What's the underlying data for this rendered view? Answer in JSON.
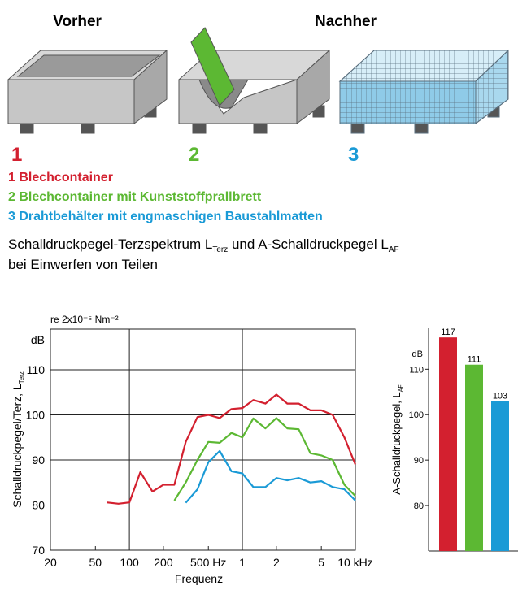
{
  "header": {
    "before": "Vorher",
    "after": "Nachher"
  },
  "markers": [
    "1",
    "2",
    "3"
  ],
  "caption": [
    "Schalldruckpegel-Terzspektrum L",
    "Terz",
    " und A-Schalldruckpegel L",
    "AF",
    "bei Einwerfen von Teilen"
  ],
  "chart_data": [
    {
      "type": "line",
      "unit_note": "re 2x10⁻⁵ Nm⁻²",
      "y_unit": "dB",
      "y_label": [
        "Schalldruckpegel/Terz, L",
        "Terz"
      ],
      "x_label": "Frequenz",
      "log_x": true,
      "grid": true,
      "x": [
        63,
        80,
        100,
        125,
        160,
        200,
        250,
        315,
        400,
        500,
        630,
        800,
        1000,
        1250,
        1600,
        2000,
        2500,
        3150,
        4000,
        5000,
        6300,
        8000,
        10000
      ],
      "series": [
        {
          "name": "1 Blechcontainer",
          "color": "#d3202f",
          "values": [
            80.6,
            80.3,
            80.6,
            87.3,
            83,
            84.5,
            84.5,
            94,
            99.5,
            100,
            99.3,
            101.3,
            101.5,
            103.3,
            102.5,
            104.5,
            102.5,
            102.5,
            101,
            101,
            100,
            95,
            89
          ]
        },
        {
          "name": "2 Blechcontainer mit Kunststoffprallbrett",
          "color": "#5cb833",
          "values": [
            null,
            null,
            null,
            null,
            null,
            null,
            81,
            85,
            90,
            94,
            93.8,
            96,
            95,
            99.2,
            97,
            99.3,
            97,
            96.8,
            91.5,
            91,
            90,
            84.5,
            82
          ]
        },
        {
          "name": "3 Drahtbehälter mit engmaschigen Baustahlmatten",
          "color": "#1a9ad6",
          "values": [
            null,
            null,
            null,
            null,
            null,
            null,
            null,
            80.5,
            83.5,
            89.5,
            92,
            87.5,
            87,
            84,
            84,
            86,
            85.5,
            86,
            85,
            85.3,
            84,
            83.5,
            81
          ]
        }
      ],
      "xlim": [
        20,
        10000
      ],
      "xticks": [
        20,
        50,
        100,
        200,
        {
          "value": 500,
          "label": "500 Hz"
        },
        {
          "value": 1000,
          "label": "1"
        },
        {
          "value": 2000,
          "label": "2"
        },
        {
          "value": 5000,
          "label": "5"
        },
        {
          "value": 10000,
          "label": "10 kHz"
        }
      ],
      "ylim": [
        70,
        119
      ],
      "yticks": [
        70,
        80,
        90,
        100,
        110
      ]
    },
    {
      "type": "bar",
      "y_unit": "dB",
      "y_label": [
        "A-Schalldruckpegel, L",
        "AF"
      ],
      "categories": [
        null,
        null,
        null
      ],
      "values": [
        117,
        111,
        103
      ],
      "colors": [
        "#d3202f",
        "#5cb833",
        "#1a9ad6"
      ],
      "ylim": [
        70,
        119
      ],
      "yticks": [
        80,
        90,
        100,
        110
      ]
    }
  ]
}
